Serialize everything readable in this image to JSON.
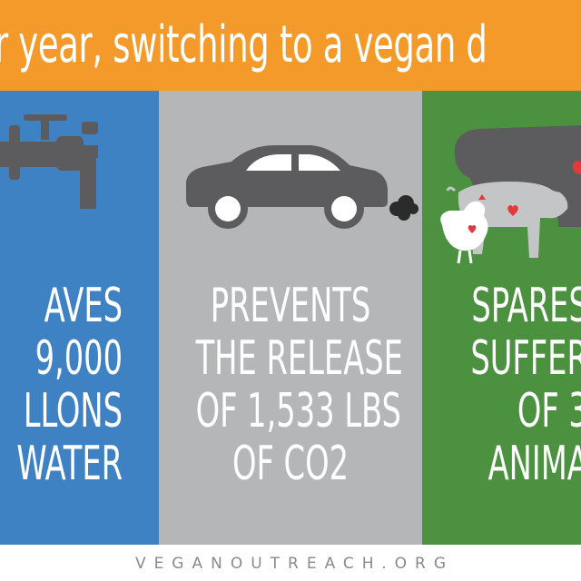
{
  "banner": {
    "text": "r year, switching to a vegan d",
    "color": "#f39a2b"
  },
  "panels": [
    {
      "id": "water",
      "color": "#3f82c4",
      "icon": "faucet-icon",
      "lines": [
        "AVES",
        "9,000",
        "LLONS",
        "WATER"
      ]
    },
    {
      "id": "co2",
      "color": "#b5b6b8",
      "icon": "car-icon",
      "lines": [
        "PREVENTS",
        "THE RELEASE",
        "OF 1,533 LBS",
        "OF CO2"
      ]
    },
    {
      "id": "animals",
      "color": "#4c9140",
      "icon": "farm-animals-icon",
      "lines": [
        "SPARES",
        "SUFFER",
        "OF 3",
        "ANIMA"
      ]
    }
  ],
  "footer": {
    "text": "VEGANOUTREACH.ORG",
    "color": "#8a8a8a"
  },
  "icon_color": "#5c5c5e",
  "heart_color": "#e23a3a"
}
